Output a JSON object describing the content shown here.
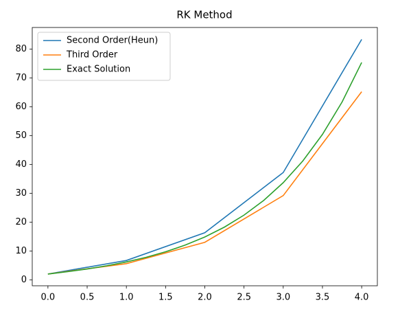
{
  "chart_data": {
    "type": "line",
    "title": "RK Method",
    "xlim": [
      -0.2,
      4.2
    ],
    "ylim": [
      -2.07,
      87.47
    ],
    "xticks": [
      {
        "value": 0,
        "label": "0.0"
      },
      {
        "value": 0.5,
        "label": "0.5"
      },
      {
        "value": 1,
        "label": "1.0"
      },
      {
        "value": 1.5,
        "label": "1.5"
      },
      {
        "value": 2,
        "label": "2.0"
      },
      {
        "value": 2.5,
        "label": "2.5"
      },
      {
        "value": 3,
        "label": "3.0"
      },
      {
        "value": 3.5,
        "label": "3.5"
      },
      {
        "value": 4,
        "label": "4.0"
      }
    ],
    "yticks": [
      0,
      10,
      20,
      30,
      40,
      50,
      60,
      70,
      80
    ],
    "grid": false,
    "legend": "upper left",
    "series": [
      {
        "name": "Second Order(Heun)",
        "color": "#1f77b4",
        "x": [
          0,
          1,
          2,
          3,
          4
        ],
        "values": [
          2,
          6.7011,
          16.3197,
          37.1992,
          83.3378
        ]
      },
      {
        "name": "Third Order",
        "color": "#ff7f0e",
        "x": [
          0,
          1,
          2,
          3,
          4
        ],
        "values": [
          2,
          5.6,
          13.0,
          29.2,
          65.2
        ]
      },
      {
        "name": "Exact Solution",
        "color": "#2ca02c",
        "x": [
          0,
          0.25,
          0.5,
          0.75,
          1,
          1.25,
          1.5,
          1.75,
          2,
          2.25,
          2.5,
          2.75,
          3,
          3.25,
          3.5,
          3.75,
          4
        ],
        "values": [
          2,
          2.808,
          3.752,
          4.866,
          6.194,
          7.787,
          9.707,
          12.029,
          14.844,
          18.264,
          22.427,
          27.497,
          33.677,
          41.214,
          50.411,
          61.636,
          75.338
        ]
      }
    ]
  }
}
